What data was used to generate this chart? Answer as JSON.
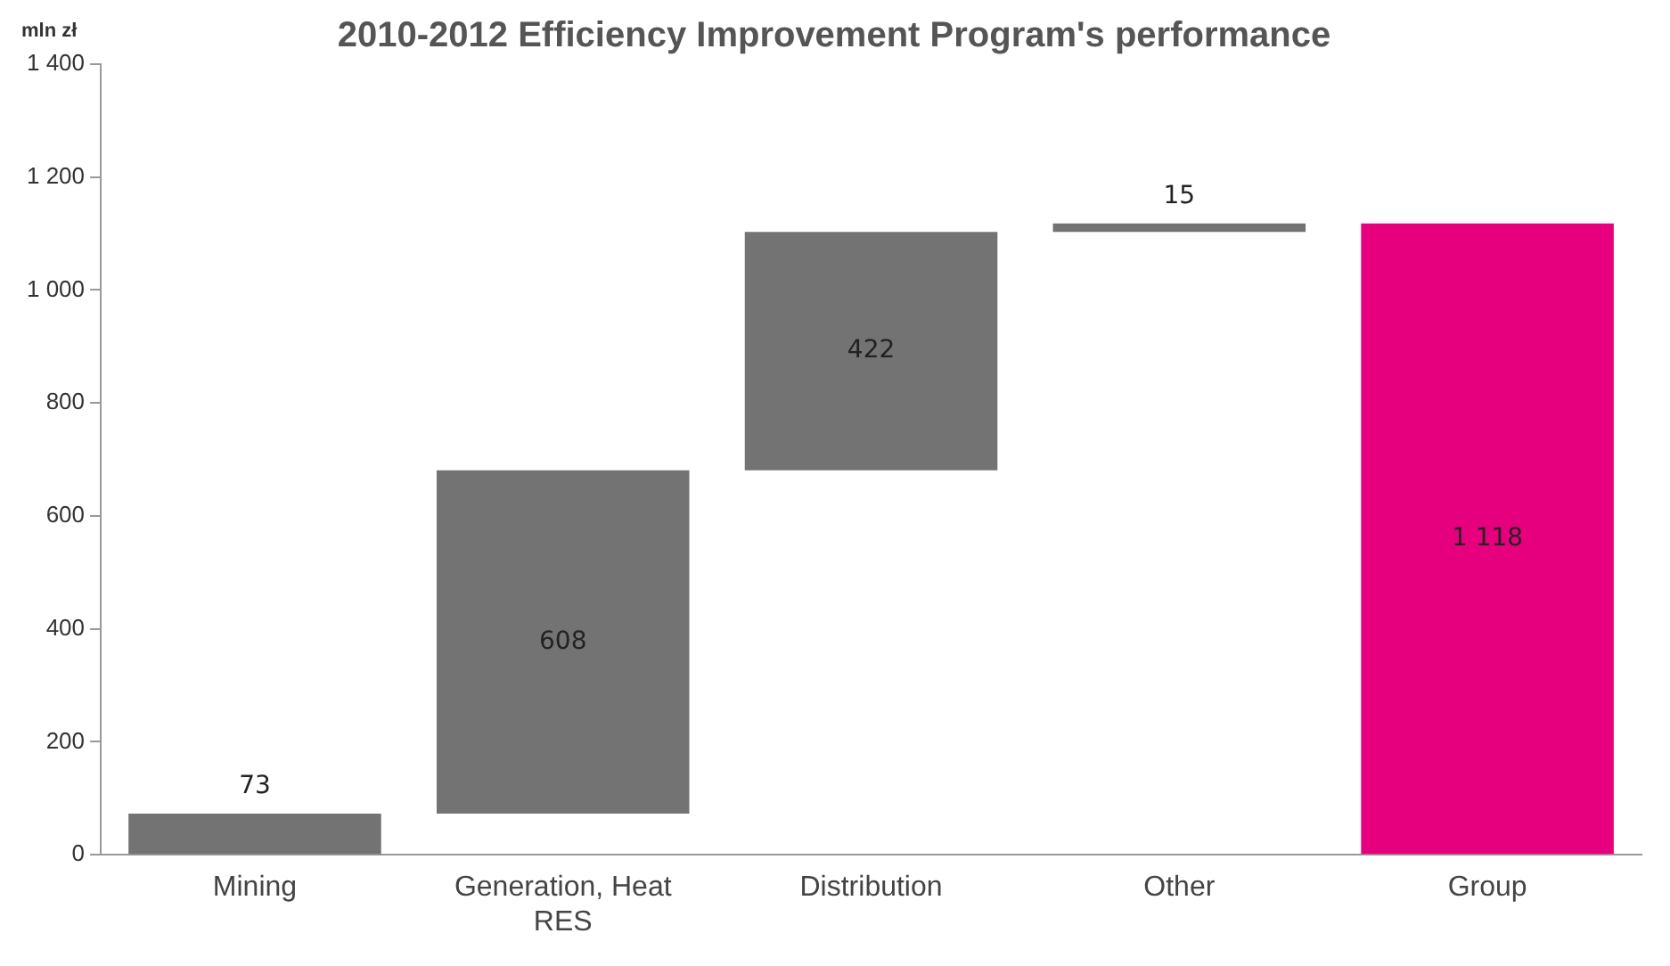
{
  "chart_data": {
    "type": "bar",
    "title": "2010-2012 Efficiency Improvement Program's performance",
    "ylabel": "mln zł",
    "categories": [
      "Mining",
      "Generation, Heat RES",
      "Distribution",
      "Other",
      "Group"
    ],
    "values": [
      73,
      608,
      422,
      15,
      1118
    ],
    "base": [
      0,
      73,
      681,
      1103,
      0
    ],
    "colors": [
      "#737373",
      "#737373",
      "#737373",
      "#737373",
      "#e6007e"
    ],
    "value_labels": [
      "73",
      "608",
      "422",
      "15",
      "1 118"
    ],
    "ylim": [
      0,
      1400
    ],
    "yticks": [
      0,
      200,
      400,
      600,
      800,
      {
        "value": 1000,
        "label": "1 000"
      },
      {
        "value": 1200,
        "label": "1 200"
      },
      {
        "value": 1400,
        "label": "1 400"
      }
    ],
    "grid": false,
    "legend": false
  }
}
